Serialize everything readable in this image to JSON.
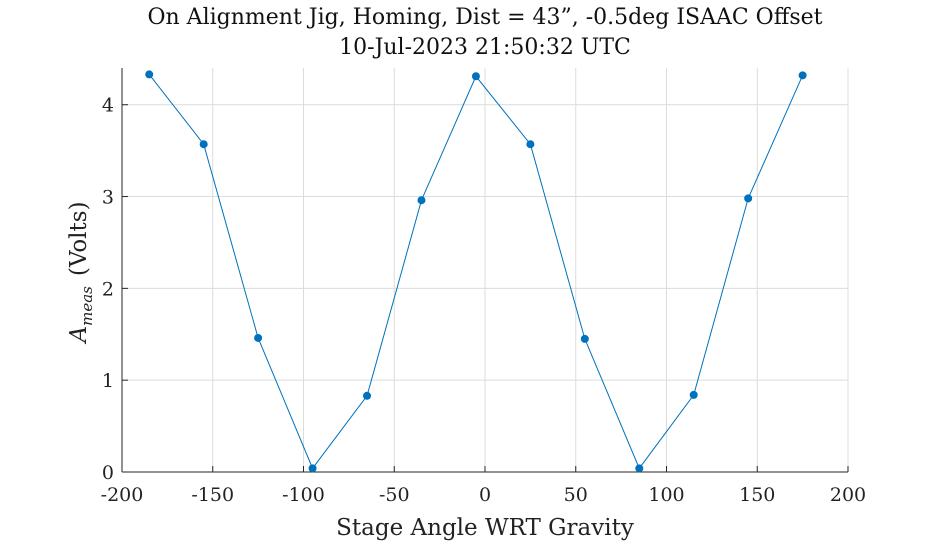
{
  "chart_data": {
    "type": "line",
    "title": "On Alignment Jig, Homing, Dist = 43”, -0.5deg ISAAC Offset",
    "subtitle": "10-Jul-2023 21:50:32 UTC",
    "xlabel": "Stage Angle WRT Gravity",
    "ylabel_main": "A",
    "ylabel_sub": "meas",
    "ylabel_unit": "(Volts)",
    "xlim": [
      -200,
      200
    ],
    "ylim": [
      0,
      4.4
    ],
    "xticks": [
      -200,
      -150,
      -100,
      -50,
      0,
      50,
      100,
      150,
      200
    ],
    "yticks": [
      0,
      1,
      2,
      3,
      4
    ],
    "grid": true,
    "color": "#0072BD",
    "series": [
      {
        "x": [
          -185,
          -155,
          -125,
          -95,
          -65,
          -35,
          -5,
          25,
          55,
          85,
          115,
          145,
          175
        ],
        "values": [
          4.33,
          3.57,
          1.46,
          0.04,
          0.83,
          2.96,
          4.31,
          3.57,
          1.45,
          0.04,
          0.84,
          2.98,
          4.32
        ]
      }
    ]
  }
}
